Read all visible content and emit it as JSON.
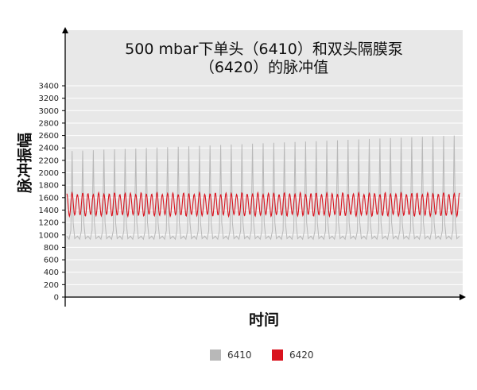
{
  "chart_data": {
    "type": "line",
    "title_lines": [
      "500 mbar下单头（6410）和双头隔膜泵",
      "（6420）的脉冲值"
    ],
    "xlabel": "时间",
    "ylabel": "脉冲振幅",
    "ylim": [
      0,
      3400
    ],
    "yticks": [
      0,
      200,
      400,
      600,
      800,
      1000,
      1200,
      1400,
      1600,
      1800,
      2000,
      2200,
      2400,
      2600,
      2800,
      3000,
      3200,
      3400
    ],
    "grid": true,
    "legend_position": "bottom",
    "series": [
      {
        "name": "6410",
        "color": "#b8b8b8",
        "pulse_count": 37,
        "baseline_approx": 950,
        "peak_start": 2350,
        "peak_end": 2600
      },
      {
        "name": "6420",
        "color": "#d9131e",
        "cycle_count": 74,
        "min_approx": 1300,
        "max_approx": 1680
      }
    ]
  }
}
